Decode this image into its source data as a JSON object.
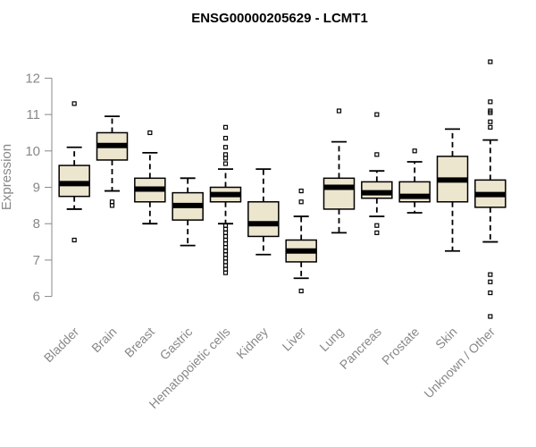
{
  "chart_data": {
    "type": "boxplot",
    "title": "ENSG00000205629 - LCMT1",
    "xlabel": "",
    "ylabel": "Expression",
    "ylim": [
      5.4,
      12.6
    ],
    "yticks": [
      6,
      7,
      8,
      9,
      10,
      11,
      12
    ],
    "grid": false,
    "box_fill": "#ede6cf",
    "categories": [
      "Bladder",
      "Brain",
      "Breast",
      "Gastric",
      "Hematopoietic cells",
      "Kidney",
      "Liver",
      "Lung",
      "Pancreas",
      "Prostate",
      "Skin",
      "Unknown / Other"
    ],
    "boxes": [
      {
        "whisker_low": 8.4,
        "q1": 8.75,
        "median": 9.1,
        "q3": 9.6,
        "whisker_high": 10.1,
        "outliers": [
          11.3,
          7.55
        ]
      },
      {
        "whisker_low": 8.9,
        "q1": 9.75,
        "median": 10.15,
        "q3": 10.5,
        "whisker_high": 10.95,
        "outliers": [
          8.6,
          8.5
        ]
      },
      {
        "whisker_low": 8.0,
        "q1": 8.6,
        "median": 8.95,
        "q3": 9.25,
        "whisker_high": 9.95,
        "outliers": [
          10.5
        ]
      },
      {
        "whisker_low": 7.4,
        "q1": 8.1,
        "median": 8.5,
        "q3": 8.85,
        "whisker_high": 9.25,
        "outliers": []
      },
      {
        "whisker_low": 8.0,
        "q1": 8.6,
        "median": 8.8,
        "q3": 9.0,
        "whisker_high": 9.5,
        "outliers": [
          10.65,
          10.35,
          10.1,
          9.9,
          9.8,
          9.65,
          7.95,
          7.85,
          7.75,
          7.65,
          7.55,
          7.45,
          7.35,
          7.25,
          7.15,
          7.05,
          6.95,
          6.85,
          6.75,
          6.65
        ]
      },
      {
        "whisker_low": 7.15,
        "q1": 7.65,
        "median": 8.0,
        "q3": 8.6,
        "whisker_high": 9.5,
        "outliers": []
      },
      {
        "whisker_low": 6.5,
        "q1": 6.95,
        "median": 7.25,
        "q3": 7.55,
        "whisker_high": 8.2,
        "outliers": [
          8.6,
          8.9,
          6.15
        ]
      },
      {
        "whisker_low": 7.75,
        "q1": 8.4,
        "median": 9.0,
        "q3": 9.25,
        "whisker_high": 10.25,
        "outliers": [
          11.1
        ]
      },
      {
        "whisker_low": 8.2,
        "q1": 8.7,
        "median": 8.85,
        "q3": 9.15,
        "whisker_high": 9.45,
        "outliers": [
          11.0,
          9.9,
          7.95,
          7.75
        ]
      },
      {
        "whisker_low": 8.3,
        "q1": 8.6,
        "median": 8.75,
        "q3": 9.15,
        "whisker_high": 9.7,
        "outliers": [
          10.0
        ]
      },
      {
        "whisker_low": 7.25,
        "q1": 8.6,
        "median": 9.2,
        "q3": 9.85,
        "whisker_high": 10.6,
        "outliers": []
      },
      {
        "whisker_low": 7.5,
        "q1": 8.45,
        "median": 8.8,
        "q3": 9.2,
        "whisker_high": 10.3,
        "outliers": [
          12.45,
          11.35,
          11.1,
          11.05,
          10.8,
          10.65,
          6.6,
          6.4,
          6.1,
          5.45
        ]
      }
    ]
  }
}
